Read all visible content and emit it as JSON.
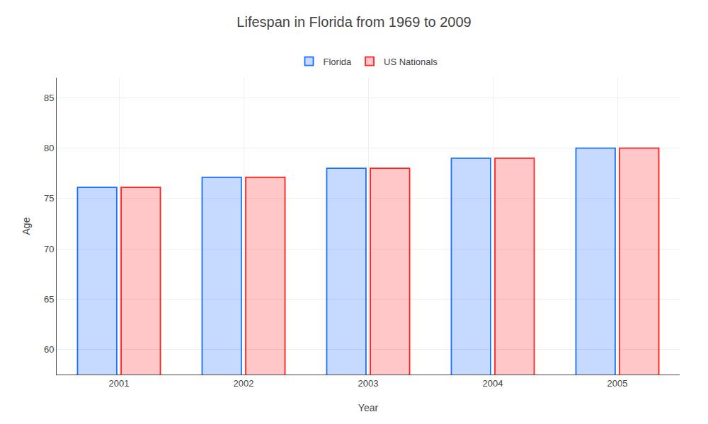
{
  "chart_data": {
    "type": "bar",
    "title": "Lifespan in Florida from 1969 to 2009",
    "xlabel": "Year",
    "ylabel": "Age",
    "categories": [
      "2001",
      "2002",
      "2003",
      "2004",
      "2005"
    ],
    "series": [
      {
        "name": "Florida",
        "color": "#1a6dff",
        "values": [
          76.1,
          77.1,
          78.0,
          79.0,
          80.0
        ]
      },
      {
        "name": "US Nationals",
        "color": "#ff2020",
        "values": [
          76.1,
          77.1,
          78.0,
          79.0,
          80.0
        ]
      }
    ],
    "ylim": [
      57.5,
      87
    ],
    "yticks": [
      60,
      65,
      70,
      75,
      80,
      85
    ],
    "grid": true,
    "legend": "top"
  }
}
